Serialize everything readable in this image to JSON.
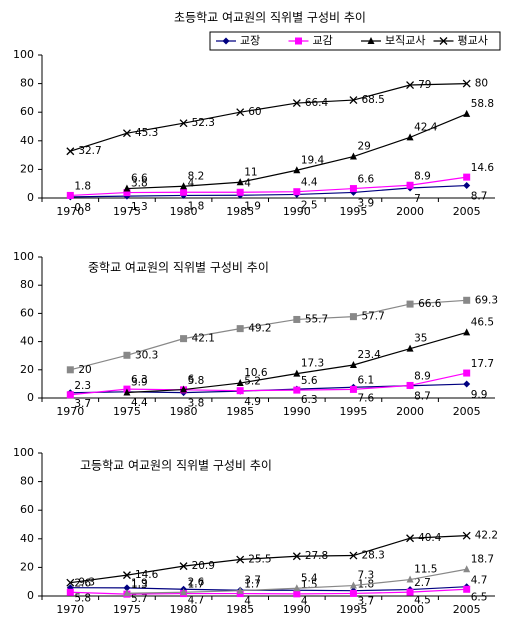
{
  "chart_data": [
    {
      "type": "line",
      "title": "초등학교 여교원의 직위별 구성비 추이",
      "categories": [
        "1970",
        "1975",
        "1980",
        "1985",
        "1990",
        "1995",
        "2000",
        "2005"
      ],
      "series": [
        {
          "name": "교장",
          "color": "#000080",
          "marker": "diamond",
          "values": [
            0.8,
            1.3,
            1.8,
            1.9,
            2.5,
            3.9,
            7,
            8.7
          ]
        },
        {
          "name": "교감",
          "color": "#ff00ff",
          "marker": "square",
          "values": [
            1.8,
            3.8,
            4,
            4,
            4.4,
            6.6,
            8.9,
            14.6
          ]
        },
        {
          "name": "보직교사",
          "color": "#000000",
          "marker": "triangle",
          "values": [
            null,
            6.6,
            8.2,
            11,
            19.4,
            29,
            42.4,
            58.8
          ]
        },
        {
          "name": "평교사",
          "color": "#000000",
          "marker": "x",
          "values": [
            32.7,
            45.3,
            52.3,
            60,
            66.4,
            68.5,
            79,
            80
          ]
        }
      ],
      "ylim": [
        0,
        100
      ],
      "yticks": [
        0,
        20,
        40,
        60,
        80,
        100
      ],
      "grid": false,
      "legend": "top"
    },
    {
      "type": "line",
      "title": "중학교 여교원의 직위별 구성비 추이",
      "categories": [
        "1970",
        "1975",
        "1980",
        "1985",
        "1990",
        "1995",
        "2000",
        "2005"
      ],
      "series": [
        {
          "color": "#000080",
          "marker": "diamond",
          "values": [
            3.7,
            4.4,
            3.8,
            4.9,
            6.3,
            7.6,
            8.7,
            9.9
          ]
        },
        {
          "color": "#ff00ff",
          "marker": "square",
          "values": [
            2.3,
            6.3,
            5.8,
            5.2,
            5.6,
            6.1,
            8.9,
            17.7
          ]
        },
        {
          "color": "#000000",
          "marker": "triangle",
          "values": [
            null,
            3.9,
            6,
            10.6,
            17.3,
            23.4,
            35,
            46.5
          ]
        },
        {
          "color": "#888888",
          "marker": "square",
          "values": [
            20,
            30.3,
            42.1,
            49.2,
            55.7,
            57.7,
            66.6,
            69.3
          ]
        }
      ],
      "ylim": [
        0,
        100
      ],
      "yticks": [
        0,
        20,
        40,
        60,
        80,
        100
      ],
      "grid": false,
      "legend": "none"
    },
    {
      "type": "line",
      "title": "고등학교 여교원의 직위별 구성비 추이",
      "categories": [
        "1970",
        "1975",
        "1980",
        "1985",
        "1990",
        "1995",
        "2000",
        "2005"
      ],
      "series": [
        {
          "color": "#000080",
          "marker": "diamond",
          "values": [
            5.8,
            5.7,
            4.7,
            4,
            4,
            3.7,
            4.5,
            6.5
          ]
        },
        {
          "color": "#ff00ff",
          "marker": "square",
          "values": [
            2.6,
            1.3,
            1.7,
            1.7,
            1.5,
            1.8,
            2.7,
            4.7
          ]
        },
        {
          "color": "#888888",
          "marker": "triangle",
          "values": [
            null,
            1.9,
            2.6,
            3.7,
            5.4,
            7.3,
            11.5,
            18.7
          ]
        },
        {
          "color": "#000000",
          "marker": "x",
          "values": [
            9.3,
            14.6,
            20.9,
            25.5,
            27.8,
            28.3,
            40.4,
            42.2
          ]
        }
      ],
      "ylim": [
        0,
        100
      ],
      "yticks": [
        0,
        20,
        40,
        60,
        80,
        100
      ],
      "grid": false,
      "legend": "none"
    }
  ]
}
